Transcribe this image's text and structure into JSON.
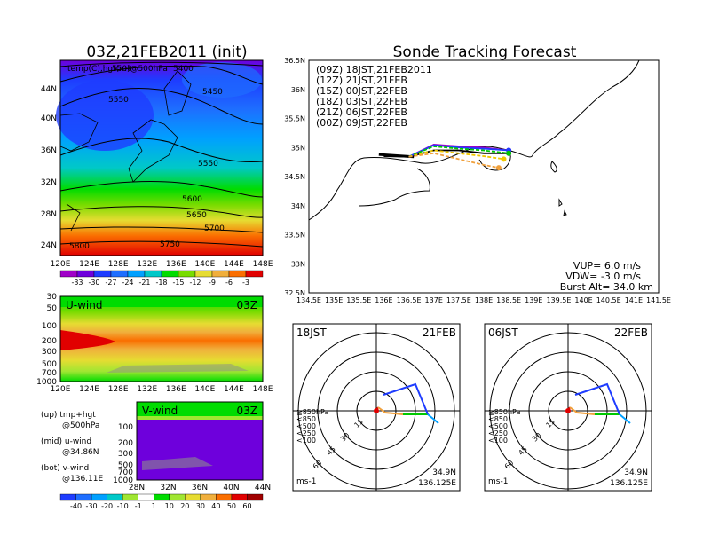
{
  "titles": {
    "left": "03Z,21FEB2011 (init)",
    "right": "Sonde Tracking Forecast",
    "temp_overlay": "temp(C),hgt(m)@500hPa"
  },
  "temp_map": {
    "xticks": [
      "120E",
      "124E",
      "128E",
      "132E",
      "136E",
      "140E",
      "144E",
      "148E"
    ],
    "yticks": [
      "44N",
      "40N",
      "36N",
      "32N",
      "28N",
      "24N"
    ],
    "contours": [
      "5400",
      "5450",
      "5500",
      "5550",
      "5550",
      "5600",
      "5650",
      "5700",
      "5750",
      "5800"
    ],
    "colorbar_labels": [
      "-33",
      "-30",
      "-27",
      "-24",
      "-21",
      "-18",
      "-15",
      "-12",
      "-9",
      "-6",
      "-3"
    ],
    "colorbar_colors": [
      "#a000c8",
      "#6e00dc",
      "#1e3cff",
      "#1e6eff",
      "#00a0ff",
      "#00c8c8",
      "#00dc00",
      "#78dc00",
      "#e6dc32",
      "#f0af3c",
      "#fa6e00",
      "#e10000"
    ]
  },
  "uwind": {
    "label": "U-wind",
    "time": "03Z",
    "yticks": [
      "30",
      "50",
      "100",
      "200",
      "300",
      "500",
      "700",
      "1000"
    ],
    "xticks": [
      "120E",
      "124E",
      "128E",
      "132E",
      "136E",
      "140E",
      "144E",
      "148E"
    ]
  },
  "vwind": {
    "label": "V-wind",
    "time": "03Z",
    "yticks": [
      "100",
      "200",
      "300",
      "500",
      "700",
      "1000"
    ],
    "xticks": [
      "28N",
      "32N",
      "36N",
      "40N",
      "44N"
    ]
  },
  "wind_colorbar": {
    "labels": [
      "-40",
      "-30",
      "-20",
      "-10",
      "-1",
      "1",
      "10",
      "20",
      "30",
      "40",
      "50",
      "60"
    ],
    "colors": [
      "#1e3cff",
      "#1e6eff",
      "#00a0ff",
      "#00c8c8",
      "#a0e632",
      "#ffffff",
      "#00dc00",
      "#a0e632",
      "#e6dc32",
      "#f0af3c",
      "#fa6e00",
      "#e10000",
      "#a00000"
    ]
  },
  "notes": {
    "up1": "(up) tmp+hgt",
    "up2": "@500hPa",
    "mid1": "(mid) u-wind",
    "mid2": "@34.86N",
    "bot1": "(bot) v-wind",
    "bot2": "@136.11E"
  },
  "track_map": {
    "xticks": [
      "134.5E",
      "135E",
      "135.5E",
      "136E",
      "136.5E",
      "137E",
      "137.5E",
      "138E",
      "138.5E",
      "139E",
      "139.5E",
      "140E",
      "140.5E",
      "141E",
      "141.5E"
    ],
    "yticks": [
      "36.5N",
      "36N",
      "35.5N",
      "35N",
      "34.5N",
      "34N",
      "33.5N",
      "33N",
      "32.5N"
    ],
    "legend": [
      {
        "text": "(09Z)  18JST,21FEB2011",
        "color": "#000000"
      },
      {
        "text": "(12Z)  21JST,21FEB",
        "color": "#a000c8"
      },
      {
        "text": "(15Z)  00JST,22FEB",
        "color": "#1e3cff"
      },
      {
        "text": "(18Z)  03JST,22FEB",
        "color": "#00c800"
      },
      {
        "text": "(21Z)  06JST,22FEB",
        "color": "#f0c800"
      },
      {
        "text": "(00Z)  09JST,22FEB",
        "color": "#f0a03c"
      }
    ],
    "vup": "VUP= 6.0  m/s",
    "vdw": "VDW= -3.0  m/s",
    "burst": "Burst Alt= 34.0  km"
  },
  "polar_left": {
    "time": "18JST",
    "date": "21FEB",
    "rings": [
      "15",
      "30",
      "45",
      "60"
    ],
    "levels": [
      "≧850hPa",
      "<850",
      "<500",
      "<250",
      "<100"
    ],
    "level_colors": [
      "#e10000",
      "#f0a03c",
      "#00c800",
      "#00a0ff",
      "#1e3cff"
    ],
    "units": "ms-1",
    "lat": "34.9N",
    "lon": "136.125E"
  },
  "polar_right": {
    "time": "06JST",
    "date": "22FEB",
    "rings": [
      "15",
      "30",
      "45",
      "60"
    ],
    "levels": [
      "≧850hPa",
      "<850",
      "<500",
      "<250",
      "<100"
    ],
    "level_colors": [
      "#e10000",
      "#f0a03c",
      "#00c800",
      "#00a0ff",
      "#1e3cff"
    ],
    "units": "ms-1",
    "lat": "34.9N",
    "lon": "136.125E"
  },
  "chart_data": [
    {
      "type": "heatmap",
      "title": "03Z,21FEB2011 (init)",
      "subtitle": "temp(C),hgt(m)@500hPa",
      "x_ticks": [
        "120E",
        "124E",
        "128E",
        "132E",
        "136E",
        "140E",
        "144E",
        "148E"
      ],
      "y_ticks": [
        "24N",
        "28N",
        "32N",
        "36N",
        "40N",
        "44N"
      ],
      "colorbar": [
        -33,
        -30,
        -27,
        -24,
        -21,
        -18,
        -15,
        -12,
        -9,
        -6,
        -3
      ],
      "height_contours": [
        5400,
        5450,
        5500,
        5550,
        5600,
        5650,
        5700,
        5750,
        5800
      ]
    },
    {
      "type": "heatmap",
      "title": "U-wind",
      "annotation": "03Z",
      "y_ticks": [
        30,
        50,
        100,
        200,
        300,
        500,
        700,
        1000
      ],
      "x_ticks": [
        "120E",
        "124E",
        "128E",
        "132E",
        "136E",
        "140E",
        "144E",
        "148E"
      ]
    },
    {
      "type": "heatmap",
      "title": "V-wind",
      "annotation": "03Z",
      "y_ticks": [
        100,
        200,
        300,
        500,
        700,
        1000
      ],
      "x_ticks": [
        "28N",
        "32N",
        "36N",
        "40N",
        "44N"
      ],
      "colorbar": [
        -40,
        -30,
        -20,
        -10,
        -1,
        1,
        10,
        20,
        30,
        40,
        50,
        60
      ]
    },
    {
      "type": "line",
      "title": "Sonde Tracking Forecast",
      "xlim": [
        134.5,
        141.5
      ],
      "ylim": [
        32.5,
        36.5
      ],
      "series": [
        {
          "name": "(09Z) 18JST,21FEB2011",
          "x": [
            136.0,
            136.5,
            137.0,
            137.5,
            138.0,
            138.5
          ],
          "y": [
            34.85,
            34.84,
            34.95,
            34.95,
            34.9,
            34.9
          ]
        },
        {
          "name": "(12Z) 21JST,21FEB",
          "x": [
            136.5,
            137.0,
            137.5,
            138.0,
            138.5
          ],
          "y": [
            34.84,
            35.05,
            35.02,
            35.0,
            34.95
          ]
        },
        {
          "name": "(15Z) 00JST,22FEB",
          "x": [
            136.5,
            137.0,
            137.5,
            138.0,
            138.5
          ],
          "y": [
            34.84,
            35.04,
            35.0,
            34.98,
            34.95
          ]
        },
        {
          "name": "(18Z) 03JST,22FEB",
          "x": [
            136.5,
            137.0,
            137.5,
            138.0,
            138.5
          ],
          "y": [
            34.84,
            35.02,
            34.98,
            34.95,
            34.9
          ]
        },
        {
          "name": "(21Z) 06JST,22FEB",
          "x": [
            136.5,
            137.0,
            137.5,
            138.0,
            138.4
          ],
          "y": [
            34.84,
            34.95,
            34.9,
            34.85,
            34.8
          ]
        },
        {
          "name": "(00Z) 09JST,22FEB",
          "x": [
            136.5,
            137.0,
            137.5,
            138.0,
            138.3
          ],
          "y": [
            34.84,
            34.9,
            34.8,
            34.7,
            34.65
          ]
        }
      ]
    },
    {
      "type": "line",
      "title": "18JST 21FEB",
      "rings": [
        15,
        30,
        45,
        60
      ]
    },
    {
      "type": "line",
      "title": "06JST 22FEB",
      "rings": [
        15,
        30,
        45,
        60
      ]
    }
  ]
}
